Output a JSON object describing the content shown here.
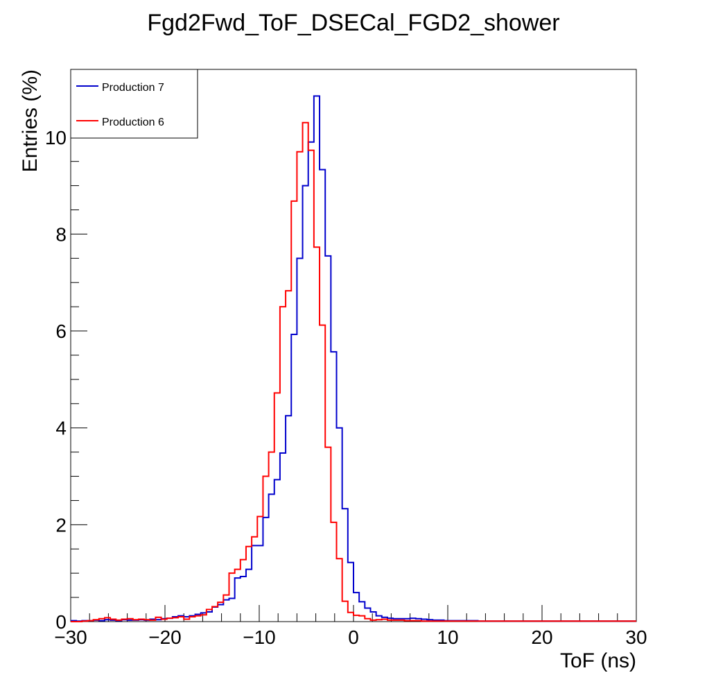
{
  "chart_data": {
    "type": "line",
    "title": "Fgd2Fwd_ToF_DSECal_FGD2_shower",
    "xlabel": "ToF (ns)",
    "ylabel": "Entries (%)",
    "xlim": [
      -30,
      30
    ],
    "ylim": [
      0,
      11.4
    ],
    "x_ticks": [
      -30,
      -20,
      -10,
      0,
      10,
      20,
      30
    ],
    "x_tick_labels": [
      "−30",
      "−20",
      "−10",
      "0",
      "10",
      "20",
      "30"
    ],
    "y_ticks": [
      0,
      2,
      4,
      6,
      8,
      10
    ],
    "y_tick_labels": [
      "0",
      "2",
      "4",
      "6",
      "8",
      "10"
    ],
    "grid": false,
    "legend_position": "top-left",
    "bin_width": 0.6,
    "bin_edges_start": -30,
    "series": [
      {
        "name": "Production 7",
        "color": "#0000cc",
        "values": [
          0.02,
          0.01,
          0.02,
          0.02,
          0.03,
          0.02,
          0.04,
          0.03,
          0.02,
          0.04,
          0.03,
          0.03,
          0.04,
          0.03,
          0.05,
          0.04,
          0.06,
          0.07,
          0.1,
          0.12,
          0.1,
          0.12,
          0.15,
          0.18,
          0.2,
          0.3,
          0.35,
          0.45,
          0.48,
          0.9,
          0.93,
          1.08,
          1.57,
          1.57,
          2.15,
          2.63,
          2.93,
          3.48,
          4.25,
          5.93,
          7.5,
          9.0,
          9.9,
          10.85,
          9.33,
          7.55,
          5.57,
          4.0,
          2.33,
          1.22,
          0.6,
          0.41,
          0.28,
          0.2,
          0.12,
          0.09,
          0.07,
          0.06,
          0.06,
          0.06,
          0.07,
          0.06,
          0.05,
          0.04,
          0.03,
          0.03,
          0.02,
          0.02,
          0.02,
          0.02,
          0.02,
          0.02,
          0.01,
          0.01,
          0.01,
          0.01,
          0.01,
          0.01,
          0.01,
          0.01,
          0.01,
          0.01,
          0.01,
          0.01,
          0.01,
          0.01,
          0.01,
          0.01,
          0.01,
          0.01,
          0.01,
          0.01,
          0.01,
          0.01,
          0.01,
          0.01,
          0.01,
          0.01,
          0.01,
          0.01
        ]
      },
      {
        "name": "Production 6",
        "color": "#ff0000",
        "values": [
          0.0,
          0.0,
          0.01,
          0.02,
          0.04,
          0.06,
          0.08,
          0.05,
          0.03,
          0.05,
          0.06,
          0.04,
          0.05,
          0.04,
          0.03,
          0.09,
          0.05,
          0.07,
          0.08,
          0.1,
          0.05,
          0.1,
          0.12,
          0.14,
          0.25,
          0.31,
          0.4,
          0.55,
          1.0,
          1.08,
          1.28,
          1.55,
          1.75,
          2.17,
          3.0,
          3.5,
          4.72,
          6.5,
          6.83,
          8.68,
          9.7,
          10.3,
          9.73,
          7.73,
          6.12,
          3.6,
          2.05,
          1.3,
          0.42,
          0.19,
          0.13,
          0.12,
          0.06,
          0.03,
          0.04,
          0.05,
          0.03,
          0.03,
          0.03,
          0.02,
          0.02,
          0.02,
          0.01,
          0.01,
          0.01,
          0.01,
          0.01,
          0.01,
          0.01,
          0.01,
          0.01,
          0.01,
          0.01,
          0.01,
          0.01,
          0.01,
          0.01,
          0.01,
          0.01,
          0.01,
          0.01,
          0.01,
          0.01,
          0.01,
          0.01,
          0.01,
          0.01,
          0.01,
          0.01,
          0.01,
          0.01,
          0.01,
          0.01,
          0.01,
          0.01,
          0.01,
          0.01,
          0.01,
          0.01,
          0.01
        ]
      }
    ]
  }
}
